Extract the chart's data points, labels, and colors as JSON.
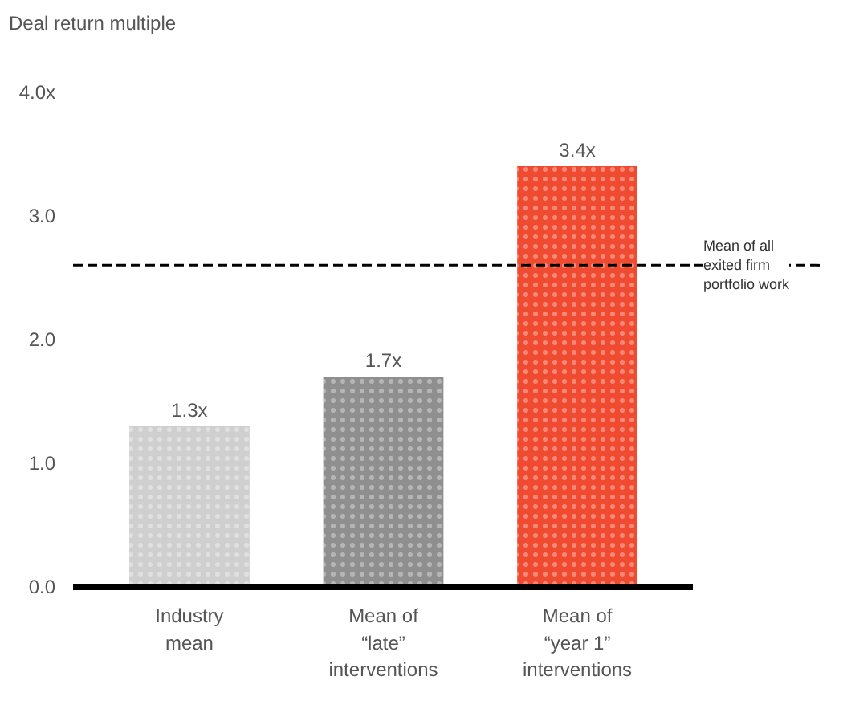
{
  "chart_data": {
    "type": "bar",
    "ylabel": "Deal return multiple",
    "categories": [
      "Industry\nmean",
      "Mean of\n“late”\ninterventions",
      "Mean of\n“year 1”\ninterventions"
    ],
    "values": [
      1.3,
      1.7,
      3.4
    ],
    "colors": [
      "#cfcfcf",
      "#8f8f8f",
      "#f04a30"
    ],
    "value_labels": [
      "1.3x",
      "1.7x",
      "3.4x"
    ],
    "ylim": [
      0,
      4.0
    ],
    "yticks": [
      {
        "value": 0,
        "label": "0.0"
      },
      {
        "value": 1,
        "label": "1.0"
      },
      {
        "value": 2,
        "label": "2.0"
      },
      {
        "value": 3,
        "label": "3.0"
      },
      {
        "value": 4,
        "label": "4.0x"
      }
    ],
    "ref_lines": [
      {
        "axis": "y",
        "value": 2.6,
        "label": "Mean of all\nexited firm\nportfolio work",
        "line_style": "dashed",
        "color": "#000000"
      }
    ],
    "grid": false
  }
}
